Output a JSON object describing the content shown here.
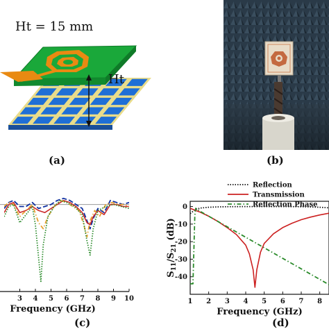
{
  "figure": {
    "panel_a": {
      "label": "(a)",
      "height_label": "Ht = 15 mm",
      "gap_label": "Ht",
      "colors": {
        "board": "#1aa83a",
        "copper": "#e98a12",
        "cells": "#1f6fd6",
        "grid_lines": "#e9dc8a"
      }
    },
    "panel_b": {
      "label": "(b)",
      "photo": "antenna-in-anechoic-chamber"
    },
    "panel_c": {
      "label": "(c)"
    },
    "panel_d": {
      "label": "(d)"
    }
  },
  "chart_data": [
    {
      "id": "c",
      "type": "line",
      "title": "",
      "xlabel": "Frequency (GHz)",
      "ylabel": "",
      "xlim": [
        2,
        10
      ],
      "ylim": [
        -45,
        3
      ],
      "x_ticks": [
        3,
        4,
        5,
        6,
        7,
        8,
        9,
        10
      ],
      "x_tick_labels": [
        "3",
        "4",
        "5",
        "6",
        "7",
        "8",
        "9",
        "10"
      ],
      "grid": false,
      "legend": "none",
      "reference_line_y": -2,
      "series": [
        {
          "style": "dashed",
          "color": "#1030a0",
          "x": [
            2.0,
            2.3,
            2.6,
            3.0,
            3.4,
            3.8,
            4.2,
            4.6,
            5.0,
            5.4,
            5.8,
            6.2,
            6.6,
            7.0,
            7.3,
            7.5,
            7.7,
            8.0,
            8.4,
            8.8,
            9.2,
            9.6,
            10.0
          ],
          "y": [
            -4,
            -1,
            0,
            -3,
            -3,
            -1,
            -4,
            -3,
            -2,
            0,
            1,
            0,
            -2,
            -4,
            -10,
            -14,
            -9,
            -4,
            -6,
            0,
            -1,
            -2,
            -1
          ]
        },
        {
          "style": "solid",
          "color": "#cc2a2a",
          "x": [
            2.0,
            2.3,
            2.6,
            3.0,
            3.4,
            3.8,
            4.2,
            4.6,
            5.0,
            5.4,
            5.8,
            6.2,
            6.6,
            7.0,
            7.3,
            7.5,
            7.7,
            8.0,
            8.4,
            8.8,
            9.2,
            9.6,
            10.0
          ],
          "y": [
            -6,
            -2,
            -1,
            -6,
            -5,
            -3,
            -5,
            -6,
            -4,
            -2,
            0,
            -1,
            -3,
            -6,
            -11,
            -12,
            -8,
            -5,
            -7,
            -2,
            -2,
            -3,
            -3
          ]
        },
        {
          "style": "dashdot",
          "color": "#e8a030",
          "x": [
            2.0,
            2.3,
            2.6,
            3.0,
            3.4,
            3.8,
            4.2,
            4.5,
            4.8,
            5.2,
            5.6,
            6.0,
            6.4,
            6.8,
            7.1,
            7.3,
            7.5,
            7.8,
            8.1,
            8.5,
            8.9,
            9.3,
            9.7,
            10.0
          ],
          "y": [
            -3,
            -1,
            -2,
            -8,
            -5,
            -2,
            -11,
            -14,
            -8,
            -3,
            0,
            -1,
            -3,
            -5,
            -12,
            -18,
            -10,
            -5,
            -8,
            -2,
            -1,
            -2,
            -2,
            -3
          ]
        },
        {
          "style": "dotted",
          "color": "#2a8a2a",
          "x": [
            2.0,
            2.3,
            2.6,
            3.0,
            3.4,
            3.8,
            4.0,
            4.2,
            4.35,
            4.5,
            4.8,
            5.2,
            5.6,
            6.0,
            6.5,
            7.0,
            7.3,
            7.5,
            7.7,
            8.0,
            8.5,
            9.0,
            9.5,
            10.0
          ],
          "y": [
            -8,
            -3,
            -2,
            -11,
            -7,
            -3,
            -12,
            -28,
            -40,
            -22,
            -8,
            -3,
            0,
            -1,
            -3,
            -7,
            -20,
            -27,
            -14,
            -5,
            -3,
            -2,
            -3,
            -4
          ]
        }
      ]
    },
    {
      "id": "d",
      "type": "line",
      "title": "",
      "xlabel": "Frequency (GHz)",
      "ylabel": "S11/S21 (dB)",
      "ylabel_parts": {
        "s": "S",
        "sub1": "11",
        "slash": "/S",
        "sub2": "21",
        "unit": " (dB)"
      },
      "xlim": [
        1,
        8.5
      ],
      "ylim": [
        -50,
        3
      ],
      "x_ticks": [
        1,
        2,
        3,
        4,
        5,
        6,
        7,
        8
      ],
      "x_tick_labels": [
        "1",
        "2",
        "3",
        "4",
        "5",
        "6",
        "7",
        "8"
      ],
      "y_ticks": [
        0,
        -10,
        -20,
        -30,
        -40
      ],
      "y_tick_labels": [
        "0",
        "-10",
        "-20",
        "-30",
        "-40"
      ],
      "grid": false,
      "legend": "top",
      "series": [
        {
          "name": "Reflection",
          "style": "dotted",
          "color": "#111111",
          "x": [
            1.0,
            1.3,
            1.6,
            2.0,
            2.5,
            3.0,
            3.5,
            4.0,
            4.5,
            5.0,
            5.5,
            6.0,
            6.5,
            7.0,
            7.5,
            8.0,
            8.5
          ],
          "y": [
            -4,
            -1.5,
            -0.8,
            -0.4,
            -0.2,
            -0.1,
            -0.05,
            0,
            0,
            0,
            0,
            0,
            -0.05,
            -0.1,
            -0.2,
            -0.4,
            -0.7
          ]
        },
        {
          "name": "Transmission",
          "style": "solid",
          "color": "#cc2020",
          "x": [
            1.0,
            1.5,
            2.0,
            2.5,
            3.0,
            3.5,
            4.0,
            4.2,
            4.4,
            4.5,
            4.6,
            4.8,
            5.0,
            5.5,
            6.0,
            6.5,
            7.0,
            7.5,
            8.0,
            8.5
          ],
          "y": [
            -1,
            -3,
            -5.5,
            -8.5,
            -12,
            -16,
            -22,
            -27,
            -36,
            -46,
            -36,
            -26,
            -21,
            -15.5,
            -12,
            -9.5,
            -7.5,
            -6,
            -4.8,
            -3.8
          ]
        },
        {
          "name": "Reflection Phase",
          "style": "dashdot",
          "color": "#2a8a2a",
          "x": [
            1.0,
            1.15,
            1.25,
            1.3,
            1.5,
            2.0,
            3.0,
            4.0,
            5.0,
            6.0,
            7.0,
            8.0,
            8.5
          ],
          "y": [
            -44,
            -44,
            -5,
            -1,
            -2.5,
            -5.5,
            -11.5,
            -17.5,
            -23.5,
            -29.5,
            -35.5,
            -41.5,
            -44.5
          ]
        }
      ]
    }
  ]
}
